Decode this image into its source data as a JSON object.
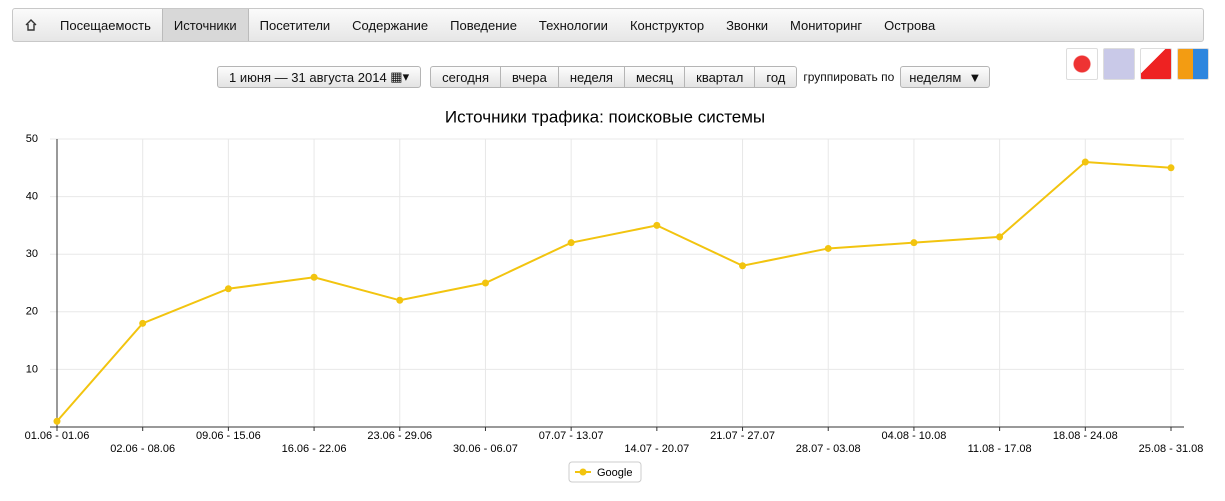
{
  "nav": {
    "items": [
      "Посещаемость",
      "Источники",
      "Посетители",
      "Содержание",
      "Поведение",
      "Технологии",
      "Конструктор",
      "Звонки",
      "Мониторинг",
      "Острова"
    ],
    "active": 1
  },
  "controls": {
    "date_range": "1 июня — 31 августа 2014",
    "periods": [
      "сегодня",
      "вчера",
      "неделя",
      "месяц",
      "квартал",
      "год"
    ],
    "group_label": "группировать по",
    "group_value": "неделям"
  },
  "chart_data": {
    "type": "line",
    "title": "Источники трафика: поисковые системы",
    "categories": [
      "01.06 - 01.06",
      "02.06 - 08.06",
      "09.06 - 15.06",
      "16.06 - 22.06",
      "23.06 - 29.06",
      "30.06 - 06.07",
      "07.07 - 13.07",
      "14.07 - 20.07",
      "21.07 - 27.07",
      "28.07 - 03.08",
      "04.08 - 10.08",
      "11.08 - 17.08",
      "18.08 - 24.08",
      "25.08 - 31.08"
    ],
    "series": [
      {
        "name": "Google",
        "color": "#f2c40f",
        "values": [
          1,
          18,
          24,
          26,
          22,
          25,
          32,
          35,
          28,
          31,
          32,
          33,
          46,
          45
        ]
      }
    ],
    "ylim": [
      0,
      50
    ],
    "yticks": [
      10,
      20,
      30,
      40,
      50
    ],
    "grid": true
  }
}
